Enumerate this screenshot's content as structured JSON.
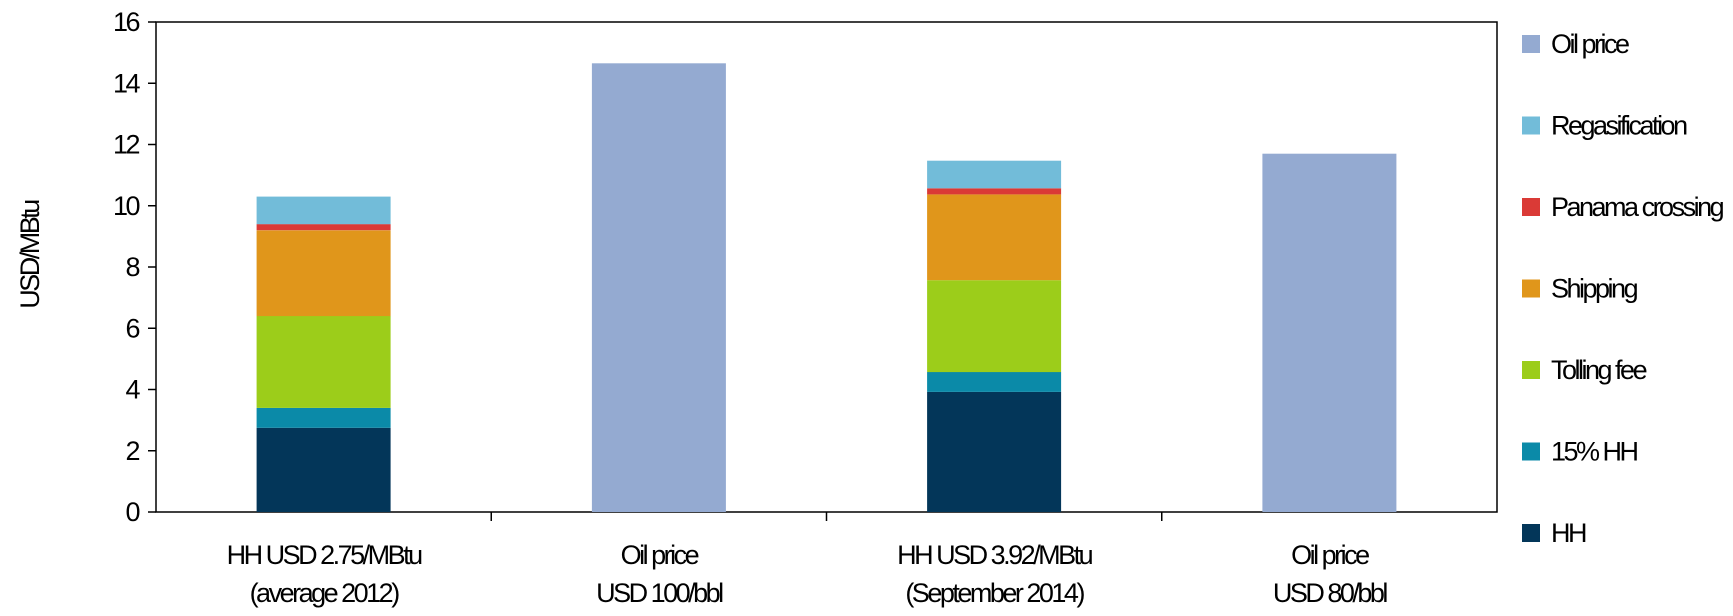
{
  "chart_data": {
    "type": "bar",
    "stacked": true,
    "ylabel": "USD/MBtu",
    "xlabel": "",
    "ylim": [
      0,
      16
    ],
    "yticks": [
      0,
      2,
      4,
      6,
      8,
      10,
      12,
      14,
      16
    ],
    "grid": false,
    "legend_position": "right",
    "categories": [
      [
        "HH USD 2.75/MBtu",
        "(average 2012)"
      ],
      [
        "Oil price",
        "USD 100/bbl"
      ],
      [
        "HH USD 3.92/MBtu",
        "(September 2014)"
      ],
      [
        "Oil price",
        "USD 80/bbl"
      ]
    ],
    "series": [
      {
        "name": "HH",
        "color": "#033659",
        "values": [
          2.75,
          0,
          3.92,
          0
        ]
      },
      {
        "name": "15% HH",
        "color": "#0b8aa8",
        "values": [
          0.65,
          0,
          0.65,
          0
        ]
      },
      {
        "name": "Tolling fee",
        "color": "#9ccd1a",
        "values": [
          3.0,
          0,
          3.0,
          0
        ]
      },
      {
        "name": "Shipping",
        "color": "#e0961b",
        "values": [
          2.8,
          0,
          2.8,
          0
        ]
      },
      {
        "name": "Panama crossing",
        "color": "#da3a36",
        "values": [
          0.2,
          0,
          0.2,
          0
        ]
      },
      {
        "name": "Regasification",
        "color": "#72bcd9",
        "values": [
          0.9,
          0,
          0.9,
          0
        ]
      },
      {
        "name": "Oil price",
        "color": "#94aad1",
        "values": [
          0,
          14.65,
          0,
          11.7
        ]
      }
    ],
    "legend_order": [
      "Oil price",
      "Regasification",
      "Panama crossing",
      "Shipping",
      "Tolling fee",
      "15% HH",
      "HH"
    ]
  }
}
